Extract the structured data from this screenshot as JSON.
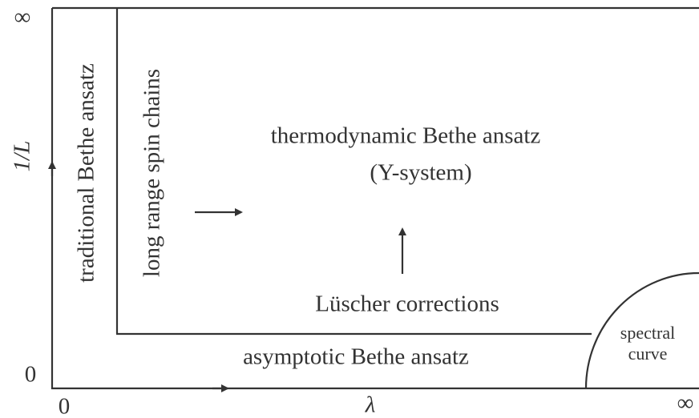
{
  "axes": {
    "y_top": "∞",
    "y_label": "1/L",
    "y_zero": "0",
    "x_zero": "0",
    "x_label": "λ",
    "x_end": "∞"
  },
  "regions": {
    "traditional": "traditional Bethe ansatz",
    "long_range": "long range spin chains",
    "tba": "thermodynamic Bethe ansatz",
    "y_system": "(Y-system)",
    "luscher": "Lüscher corrections",
    "asymptotic": "asymptotic Bethe ansatz",
    "spectral": [
      "spectral",
      "curve"
    ]
  }
}
